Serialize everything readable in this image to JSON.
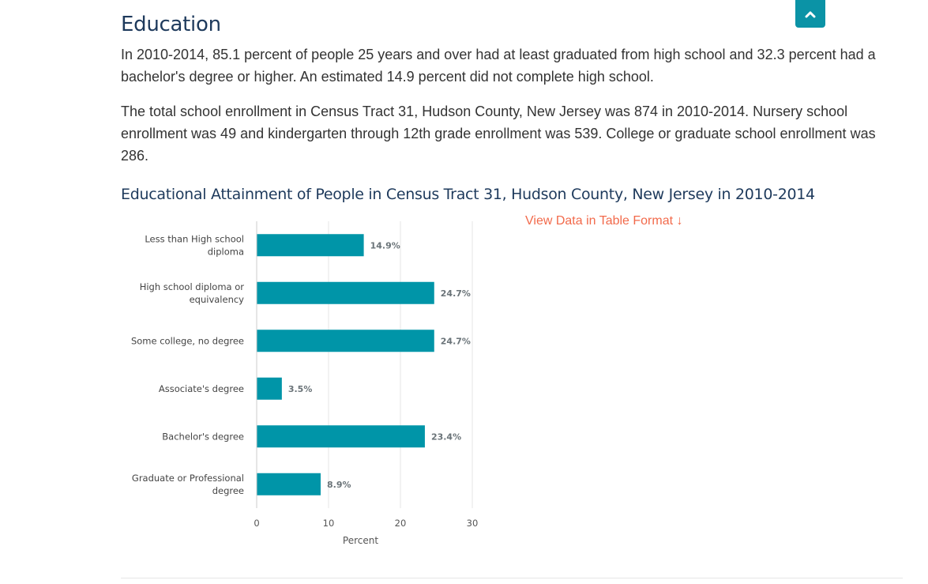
{
  "section": {
    "title": "Education",
    "paragraph_1": "In 2010-2014, 85.1 percent of people 25 years and over had at least graduated from high school and 32.3 percent had a bachelor's degree or higher. An estimated 14.9 percent did not complete high school.",
    "paragraph_2": "The total school enrollment in Census Tract 31, Hudson County, New Jersey was 874 in 2010-2014. Nursery school enrollment was 49 and kindergarten through 12th grade enrollment was 539. College or graduate school enrollment was 286."
  },
  "scroll_top": {
    "icon": "chevron-up-icon",
    "color": "#0b93a6"
  },
  "link": {
    "view_table": "View Data in Table Format ↓",
    "color": "#f26a4b"
  },
  "chart_data": {
    "type": "bar",
    "orientation": "horizontal",
    "title": "Educational Attainment of People in Census Tract 31, Hudson County, New Jersey in 2010-2014",
    "categories": [
      [
        "Less than High school",
        "diploma"
      ],
      [
        "High school diploma or",
        "equivalency"
      ],
      [
        "Some college, no degree"
      ],
      [
        "Associate's degree"
      ],
      [
        "Bachelor's degree"
      ],
      [
        "Graduate or Professional",
        "degree"
      ]
    ],
    "values": [
      14.9,
      24.7,
      24.7,
      3.5,
      23.4,
      8.9
    ],
    "value_labels": [
      "14.9%",
      "24.7%",
      "24.7%",
      "3.5%",
      "23.4%",
      "8.9%"
    ],
    "xlabel": "Percent",
    "ylabel": "",
    "xlim": [
      0,
      30
    ],
    "xticks": [
      0,
      10,
      20,
      30
    ],
    "grid": true,
    "bar_color": "#0095a8"
  }
}
